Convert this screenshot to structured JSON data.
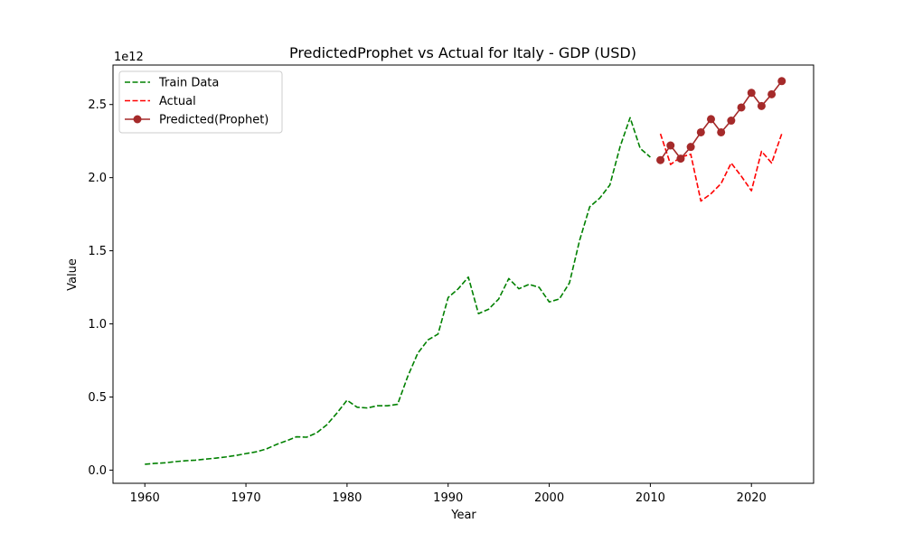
{
  "chart_data": {
    "type": "line",
    "title": "PredictedProphet vs Actual for Italy - GDP (USD)",
    "xlabel": "Year",
    "ylabel": "Value",
    "y_offset_label": "1e12",
    "xlim": [
      1956.85,
      2026.15
    ],
    "ylim": [
      -0.09,
      2.77
    ],
    "x_ticks": [
      1960,
      1970,
      1980,
      1990,
      2000,
      2010,
      2020
    ],
    "x_tick_labels": [
      "1960",
      "1970",
      "1980",
      "1990",
      "2000",
      "2010",
      "2020"
    ],
    "y_ticks": [
      0.0,
      0.5,
      1.0,
      1.5,
      2.0,
      2.5
    ],
    "y_tick_labels": [
      "0.0",
      "0.5",
      "1.0",
      "1.5",
      "2.0",
      "2.5"
    ],
    "grid": false,
    "legend_position": "top-left",
    "series": [
      {
        "name": "Train Data",
        "color": "#008000",
        "style": "dashed",
        "marker": "none",
        "x": [
          1960,
          1961,
          1962,
          1963,
          1964,
          1965,
          1966,
          1967,
          1968,
          1969,
          1970,
          1971,
          1972,
          1973,
          1974,
          1975,
          1976,
          1977,
          1978,
          1979,
          1980,
          1981,
          1982,
          1983,
          1984,
          1985,
          1986,
          1987,
          1988,
          1989,
          1990,
          1991,
          1992,
          1993,
          1994,
          1995,
          1996,
          1997,
          1998,
          1999,
          2000,
          2001,
          2002,
          2003,
          2004,
          2005,
          2006,
          2007,
          2008,
          2009,
          2010
        ],
        "y": [
          0.04,
          0.046,
          0.05,
          0.058,
          0.064,
          0.068,
          0.075,
          0.082,
          0.09,
          0.1,
          0.113,
          0.125,
          0.144,
          0.175,
          0.2,
          0.228,
          0.225,
          0.255,
          0.31,
          0.39,
          0.478,
          0.43,
          0.425,
          0.44,
          0.44,
          0.45,
          0.64,
          0.8,
          0.89,
          0.93,
          1.18,
          1.24,
          1.32,
          1.07,
          1.1,
          1.17,
          1.31,
          1.24,
          1.27,
          1.25,
          1.15,
          1.17,
          1.28,
          1.57,
          1.8,
          1.86,
          1.95,
          2.21,
          2.41,
          2.2,
          2.14
        ]
      },
      {
        "name": "Actual",
        "color": "#ff0000",
        "style": "dashed",
        "marker": "none",
        "x": [
          2011,
          2012,
          2013,
          2014,
          2015,
          2016,
          2017,
          2018,
          2019,
          2020,
          2021,
          2022,
          2023
        ],
        "y": [
          2.3,
          2.09,
          2.14,
          2.16,
          1.84,
          1.89,
          1.96,
          2.1,
          2.01,
          1.91,
          2.18,
          2.1,
          2.3
        ]
      },
      {
        "name": "Predicted(Prophet)",
        "color": "#a52a2a",
        "style": "solid",
        "marker": "circle",
        "x": [
          2011,
          2012,
          2013,
          2014,
          2015,
          2016,
          2017,
          2018,
          2019,
          2020,
          2021,
          2022,
          2023
        ],
        "y": [
          2.12,
          2.22,
          2.13,
          2.21,
          2.31,
          2.4,
          2.31,
          2.39,
          2.48,
          2.58,
          2.49,
          2.57,
          2.66
        ]
      }
    ]
  }
}
